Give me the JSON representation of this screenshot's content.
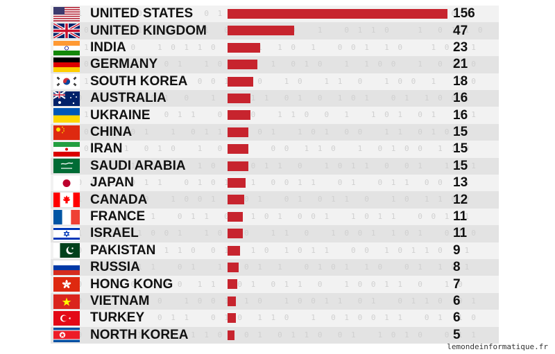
{
  "colors": {
    "bar": "#c7242e",
    "stripe_light": "#f2f2f2",
    "stripe_dark": "#e3e3e3",
    "text": "#111111"
  },
  "watermark": "lemondeinformatique.fr",
  "chart_data": {
    "type": "bar",
    "orientation": "horizontal",
    "title": "",
    "xlabel": "",
    "ylabel": "",
    "xlim": [
      0,
      156
    ],
    "grid": false,
    "legend": "none",
    "categories": [
      "UNITED STATES",
      "UNITED KINGDOM",
      "INDIA",
      "GERMANY",
      "SOUTH KOREA",
      "AUSTRALIA",
      "UKRAINE",
      "CHINA",
      "IRAN",
      "SAUDI ARABIA",
      "JAPAN",
      "CANADA",
      "FRANCE",
      "ISRAEL",
      "PAKISTAN",
      "RUSSIA",
      "HONG KONG",
      "VIETNAM",
      "TURKEY",
      "NORTH KOREA"
    ],
    "values": [
      156,
      47,
      23,
      21,
      18,
      16,
      16,
      15,
      15,
      15,
      13,
      12,
      11,
      11,
      9,
      8,
      7,
      6,
      6,
      5
    ],
    "flag_icons": [
      "us-flag-icon",
      "uk-flag-icon",
      "india-flag-icon",
      "germany-flag-icon",
      "south-korea-flag-icon",
      "australia-flag-icon",
      "ukraine-flag-icon",
      "china-flag-icon",
      "iran-flag-icon",
      "saudi-arabia-flag-icon",
      "japan-flag-icon",
      "canada-flag-icon",
      "france-flag-icon",
      "israel-flag-icon",
      "pakistan-flag-icon",
      "russia-flag-icon",
      "hong-kong-flag-icon",
      "vietnam-flag-icon",
      "turkey-flag-icon",
      "north-korea-flag-icon"
    ]
  }
}
